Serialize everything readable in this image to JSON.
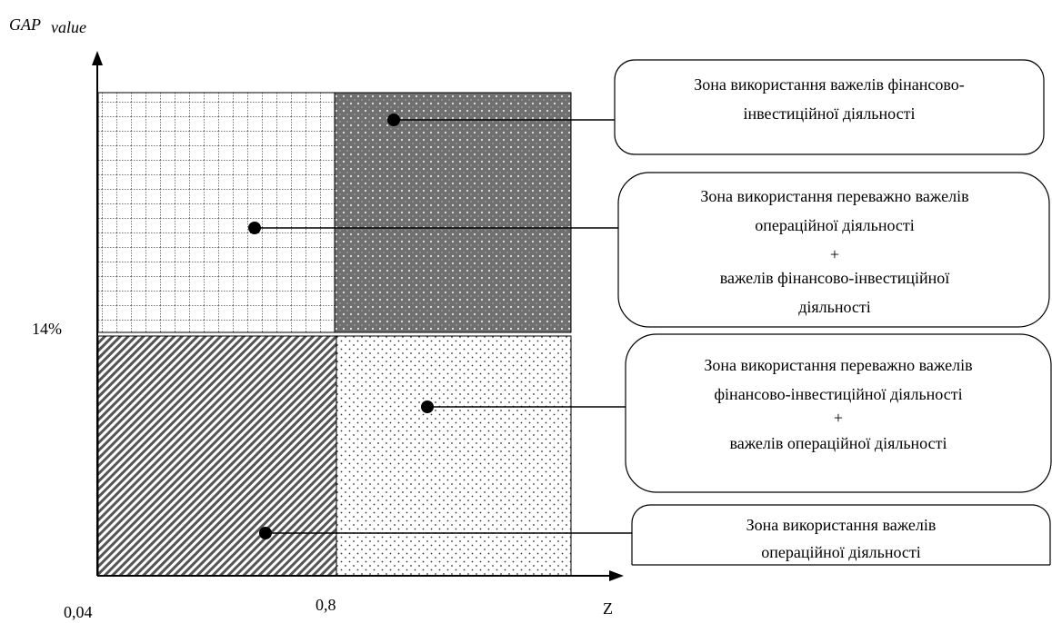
{
  "axes": {
    "y_label": "GAP",
    "y_label_sub": "value",
    "y_tick": "14%",
    "x_ticks": [
      "0,04",
      "0,8"
    ],
    "x_label": "Z"
  },
  "zones": [
    {
      "lines": [
        "Зона використання важелів фінансово-",
        "інвестиційної діяльності"
      ]
    },
    {
      "lines": [
        "Зона використання переважно важелів",
        "операційної діяльності",
        "+",
        "важелів фінансово-інвестиційної",
        "діяльності"
      ]
    },
    {
      "lines": [
        "Зона використання переважно важелів",
        "фінансово-інвестиційної діяльності",
        "+",
        "важелів операційної діяльності"
      ]
    },
    {
      "lines": [
        "Зона використання важелів",
        "операційної діяльності"
      ]
    }
  ]
}
